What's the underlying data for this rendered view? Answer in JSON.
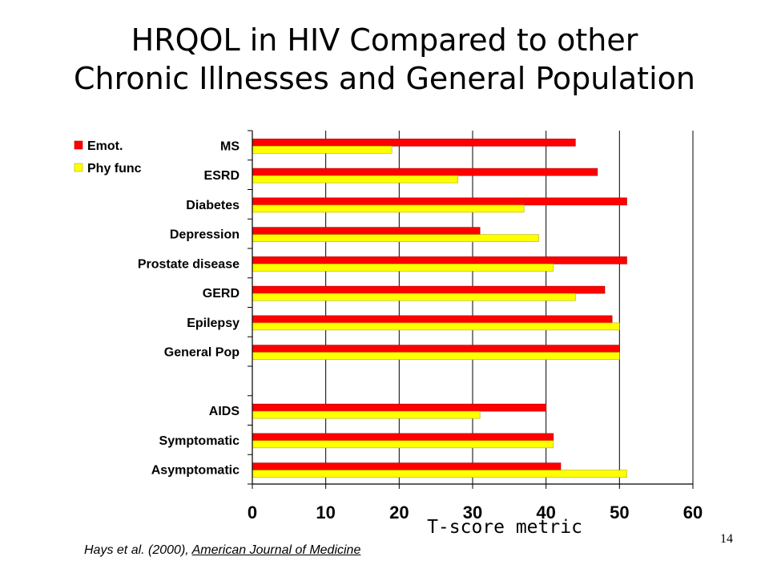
{
  "slide": {
    "title_line1": "HRQOL in HIV Compared to other",
    "title_line2": "Chronic Illnesses and General Population",
    "citation_prefix": "Hays et al. (2000), ",
    "citation_journal": "American Journal of Medicine",
    "page_number": "14"
  },
  "chart_data": {
    "type": "bar",
    "orientation": "horizontal",
    "categories": [
      "MS",
      "ESRD",
      "Diabetes",
      "Depression",
      "Prostate disease",
      "GERD",
      "Epilepsy",
      "General Pop",
      "",
      "AIDS",
      "Symptomatic",
      "Asymptomatic"
    ],
    "series": [
      {
        "name": "Emot.",
        "color": "#ff0000",
        "values": [
          44,
          47,
          51,
          31,
          51,
          48,
          49,
          50,
          null,
          40,
          41,
          42
        ]
      },
      {
        "name": "Phy func",
        "color": "#ffff00",
        "values": [
          19,
          28,
          37,
          39,
          41,
          44,
          50,
          50,
          null,
          31,
          41,
          51
        ]
      }
    ],
    "xlabel": "T-score metric",
    "xlim": [
      0,
      60
    ],
    "xticks": [
      "0",
      "10",
      "20",
      "30",
      "40",
      "50",
      "60"
    ],
    "grid": "vertical",
    "legend": "top-left"
  }
}
